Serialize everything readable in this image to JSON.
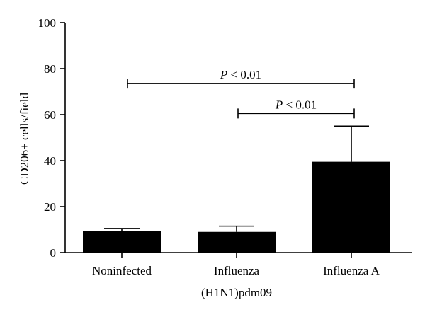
{
  "chart_data": {
    "type": "bar",
    "title": "",
    "xlabel": "",
    "ylabel": "CD206+ cells/field",
    "ylim": [
      0,
      100
    ],
    "yticks": [
      0,
      20,
      40,
      60,
      80,
      100
    ],
    "grid": false,
    "categories": [
      {
        "lines": [
          "Noninfected"
        ]
      },
      {
        "lines": [
          "Influenza",
          "(H1N1)pdm09"
        ]
      },
      {
        "lines": [
          "Influenza A"
        ]
      }
    ],
    "values": [
      9.5,
      9,
      39.5
    ],
    "errors": [
      1,
      2.5,
      15.5
    ],
    "bar_color": "#000000",
    "significance": [
      {
        "from": 0,
        "to": 2,
        "y": 73.5,
        "label_p": "P",
        "label_rest": " < 0.01"
      },
      {
        "from": 1,
        "to": 2,
        "y": 60.5,
        "label_p": "P",
        "label_rest": " < 0.01"
      }
    ]
  }
}
